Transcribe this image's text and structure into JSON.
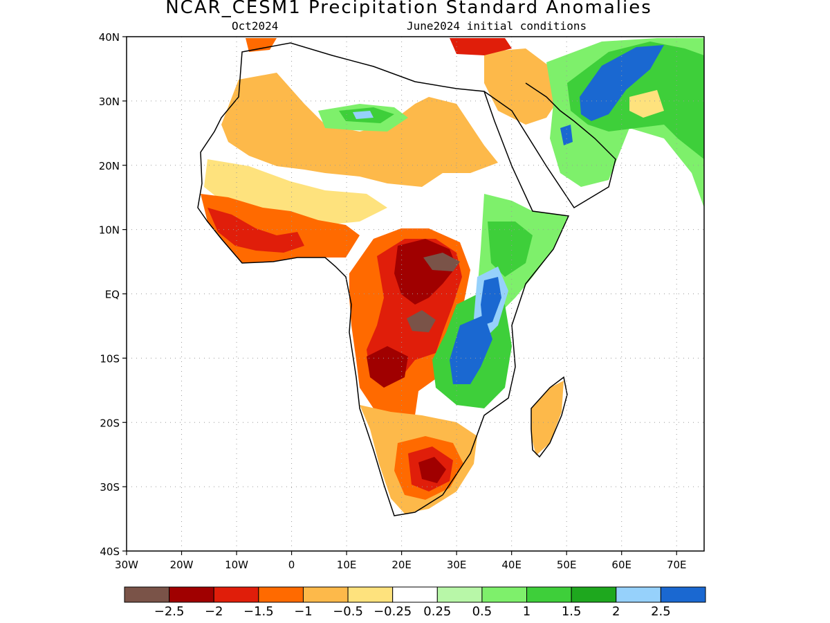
{
  "title": "NCAR_CESM1 Precipitation Standard Anomalies",
  "subtitle_left": "Oct2024",
  "subtitle_right": "June2024 initial conditions",
  "lat_labels": [
    "40N",
    "30N",
    "20N",
    "10N",
    "EQ",
    "10S",
    "20S",
    "30S",
    "40S"
  ],
  "lon_labels": [
    "30W",
    "20W",
    "10W",
    "0",
    "10E",
    "20E",
    "30E",
    "40E",
    "50E",
    "60E",
    "70E"
  ],
  "colorbar": {
    "colors": [
      "#7a5348",
      "#a00000",
      "#e01e0a",
      "#ff6a00",
      "#fdb94a",
      "#fee27d",
      "#ffffff",
      "#b8f7a8",
      "#7ef06b",
      "#3ecf3a",
      "#1ea81e",
      "#96d1fb",
      "#1a68d1"
    ],
    "labels": [
      "−2.5",
      "−2",
      "−1.5",
      "−1",
      "−0.5",
      "−0.25",
      "0.25",
      "0.5",
      "1",
      "1.5",
      "2",
      "2.5"
    ]
  },
  "colors": {
    "land_frame": "#000000",
    "grid": "#9a9a9a"
  }
}
